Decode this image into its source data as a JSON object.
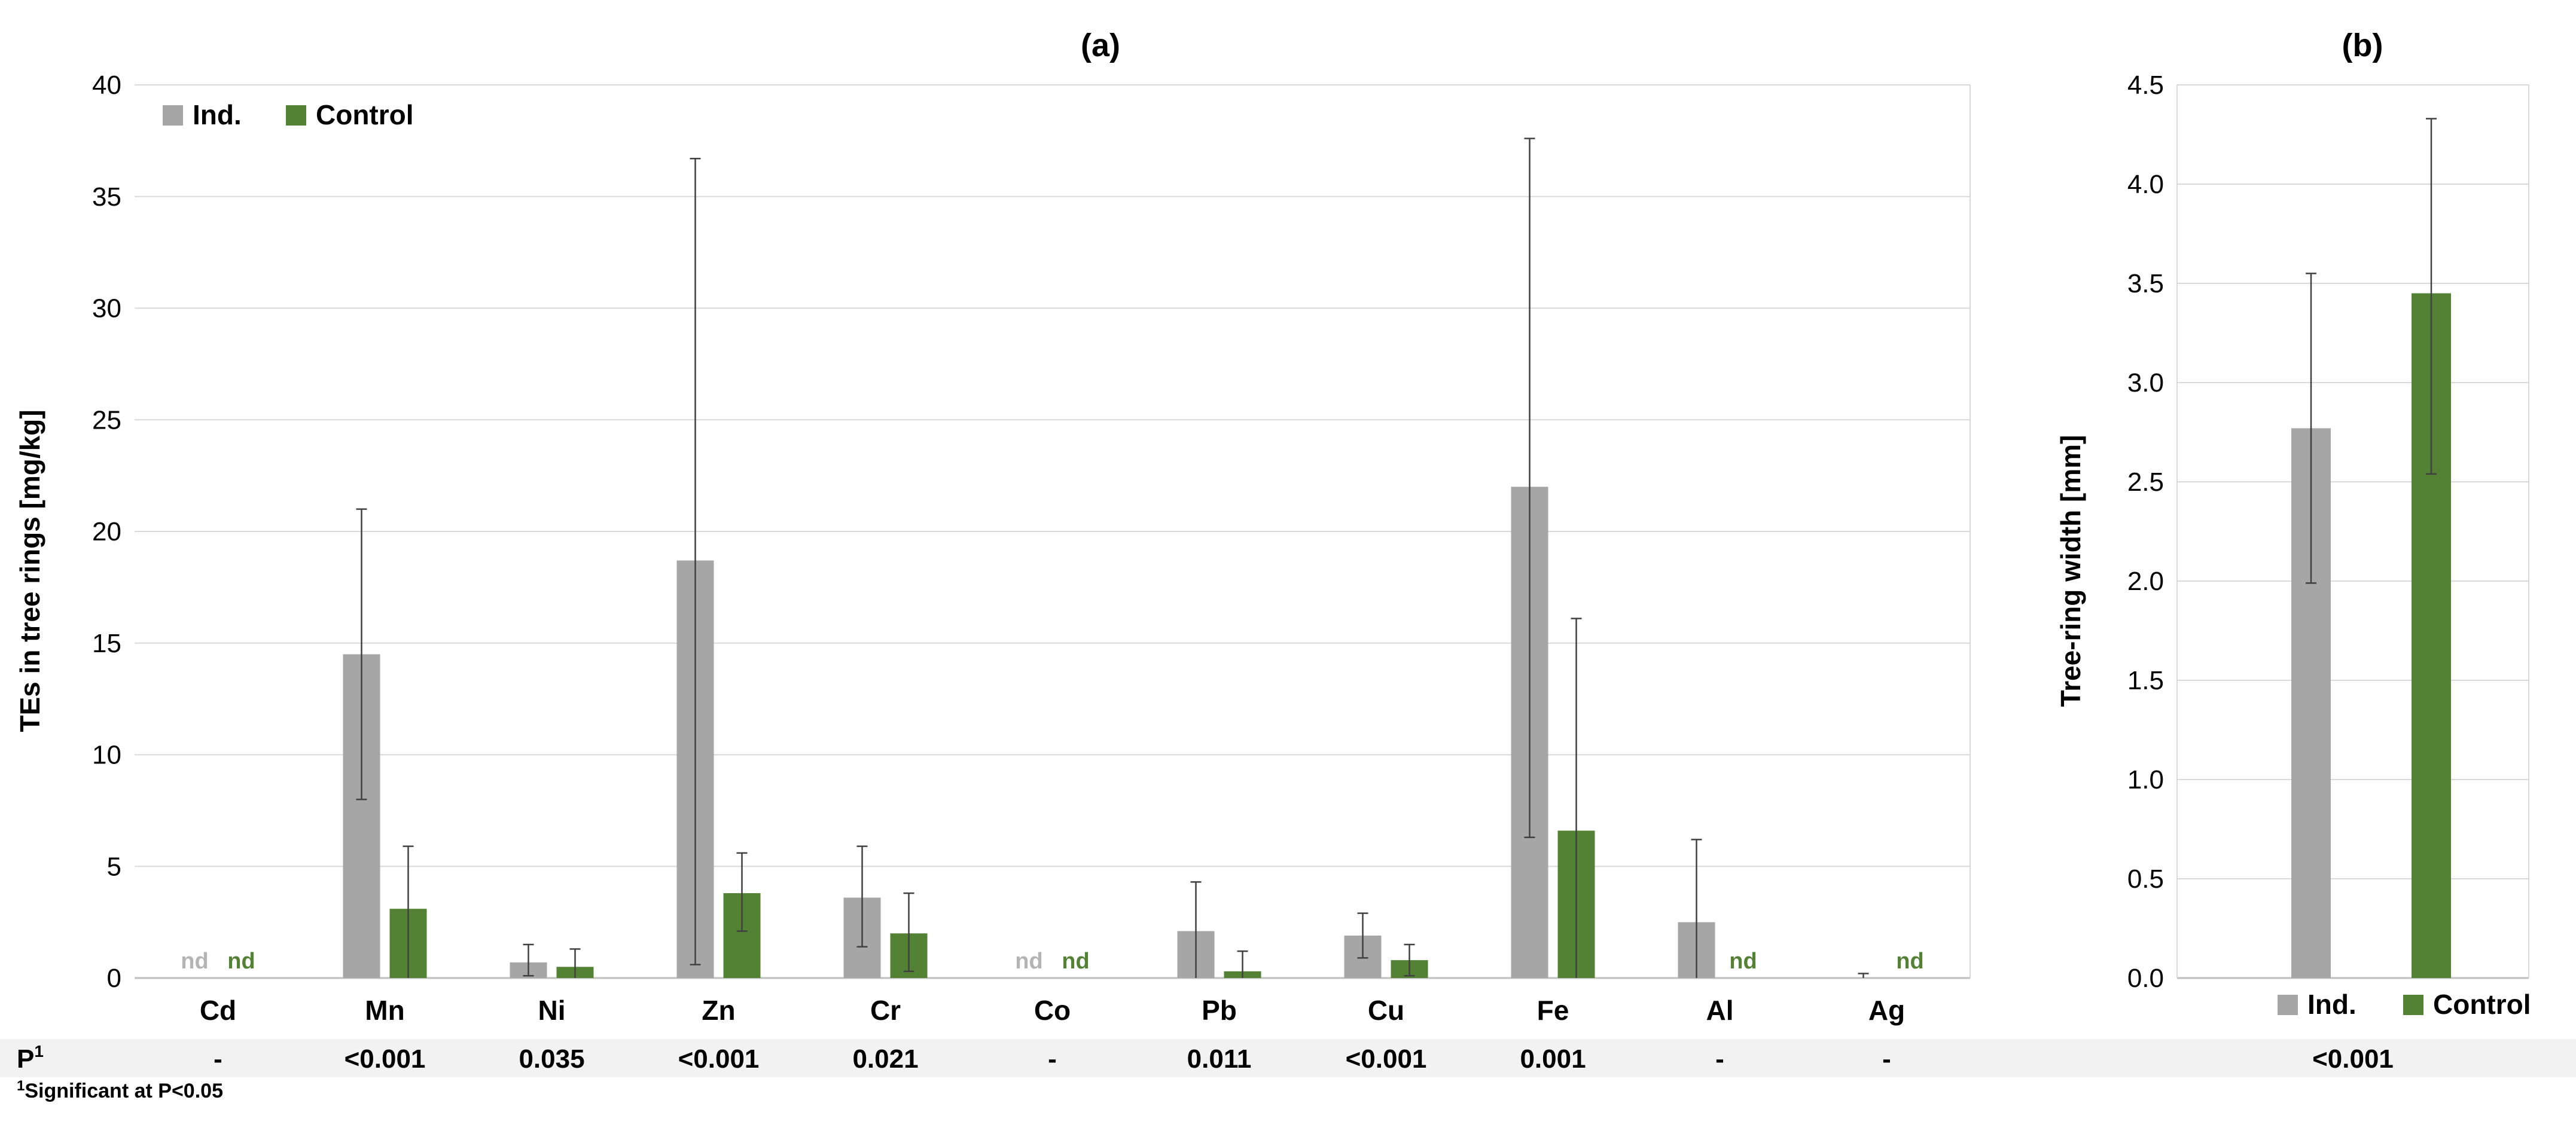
{
  "colors": {
    "ind": "#a6a6a6",
    "control": "#548235",
    "grid": "#d9d9d9",
    "axis": "#bfbfbf",
    "error": "#404040",
    "p_band": "#f2f2f2"
  },
  "p_label": "P",
  "p_superscript": "1",
  "footnote_superscript": "1",
  "footnote": "Significant at P<0.05",
  "nd_label": "nd",
  "chart_data": [
    {
      "type": "bar",
      "title": "(a)",
      "ylabel": "TEs in tree rings [mg/kg]",
      "ylim": [
        0,
        40
      ],
      "yticks": [
        "0",
        "5",
        "10",
        "15",
        "20",
        "25",
        "30",
        "35",
        "40"
      ],
      "legend_placement": "top-left",
      "categories": [
        "Cd",
        "Mn",
        "Ni",
        "Zn",
        "Cr",
        "Co",
        "Pb",
        "Cu",
        "Fe",
        "Al",
        "Ag"
      ],
      "series": [
        {
          "name": "Ind.",
          "values": [
            null,
            14.5,
            0.7,
            18.7,
            3.6,
            null,
            2.1,
            1.9,
            22.0,
            2.5,
            0.0
          ],
          "error_low": [
            null,
            8.0,
            0.1,
            0.6,
            1.4,
            null,
            0.0,
            0.9,
            6.3,
            0.0,
            0.0
          ],
          "error_high": [
            null,
            21.0,
            1.5,
            36.7,
            5.9,
            null,
            4.3,
            2.9,
            37.6,
            6.2,
            0.2
          ]
        },
        {
          "name": "Control",
          "values": [
            null,
            3.1,
            0.5,
            3.8,
            2.0,
            null,
            0.3,
            0.8,
            6.6,
            null,
            null
          ],
          "error_low": [
            null,
            0.0,
            0.0,
            2.1,
            0.3,
            null,
            0.0,
            0.1,
            0.0,
            null,
            null
          ],
          "error_high": [
            null,
            5.9,
            1.3,
            5.6,
            3.8,
            null,
            1.2,
            1.5,
            16.1,
            null,
            null
          ]
        }
      ],
      "nd_markers": {
        "Ind.": [
          "Cd",
          "Co"
        ],
        "Control": [
          "Cd",
          "Co",
          "Al",
          "Ag"
        ]
      },
      "p_values": [
        "-",
        "<0.001",
        "0.035",
        "<0.001",
        "0.021",
        "-",
        "0.011",
        "<0.001",
        "0.001",
        "-",
        "-"
      ]
    },
    {
      "type": "bar",
      "title": "(b)",
      "ylabel": "Tree-ring width [mm]",
      "ylim": [
        0,
        4.5
      ],
      "yticks": [
        "0.0",
        "0.5",
        "1.0",
        "1.5",
        "2.0",
        "2.5",
        "3.0",
        "3.5",
        "4.0",
        "4.5"
      ],
      "legend_placement": "bottom",
      "categories": [
        "Ind.",
        "Control"
      ],
      "series": [
        {
          "name": "Ind.",
          "values": [
            2.77,
            null
          ],
          "error_low": [
            1.99,
            null
          ],
          "error_high": [
            3.55,
            null
          ]
        },
        {
          "name": "Control",
          "values": [
            null,
            3.45
          ],
          "error_low": [
            null,
            2.54
          ],
          "error_high": [
            null,
            4.33
          ]
        }
      ],
      "p_values": [
        "<0.001"
      ]
    }
  ]
}
